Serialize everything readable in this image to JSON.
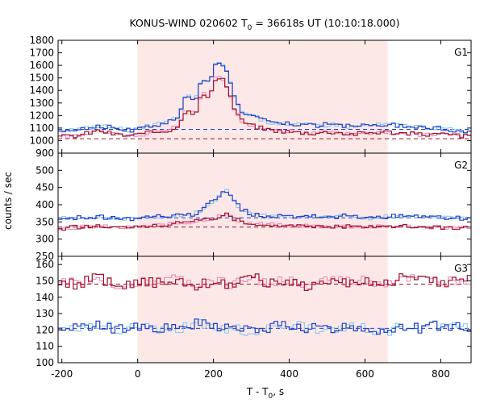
{
  "chart_data": {
    "type": "line",
    "title": "KONUS-WIND 020602 T",
    "title_sub": "0",
    "title_rest": " = 36618s UT (10:10:18.000)",
    "xlabel": "T - T",
    "xlabel_sub": "0",
    "xlabel_rest": ", s",
    "ylabel": "counts / sec",
    "xlim": [
      -210,
      880
    ],
    "x_ticks": [
      -200,
      0,
      200,
      400,
      600,
      800
    ],
    "shaded_interval": [
      0,
      660
    ],
    "shade_color": "#fde8e8",
    "colors": {
      "blue": "#1f3fc8",
      "red": "#a0102a",
      "light_blue": "#7ec8f0",
      "pink": "#f080b8"
    },
    "panels": [
      {
        "label": "G1",
        "ylim": [
          900,
          1800
        ],
        "y_ticks": [
          900,
          1000,
          1100,
          1200,
          1300,
          1400,
          1500,
          1600,
          1700,
          1800
        ],
        "bin": 10,
        "series": [
          {
            "color": "blue",
            "x": [
              -210,
              -160,
              -130,
              -100,
              -60,
              -20,
              10,
              50,
              80,
              110,
              130,
              150,
              170,
              190,
              205,
              220,
              235,
              255,
              275,
              300,
              340,
              400,
              460,
              520,
              560,
              600,
              650,
              700,
              750,
              800,
              850,
              880
            ],
            "y": [
              1080,
              1090,
              1100,
              1120,
              1100,
              1080,
              1100,
              1130,
              1140,
              1200,
              1380,
              1300,
              1500,
              1450,
              1600,
              1640,
              1560,
              1350,
              1230,
              1200,
              1150,
              1130,
              1120,
              1130,
              1110,
              1120,
              1130,
              1120,
              1110,
              1100,
              1080,
              1070
            ]
          },
          {
            "color": "red",
            "x": [
              -210,
              -160,
              -130,
              -100,
              -60,
              -20,
              10,
              50,
              80,
              110,
              130,
              150,
              170,
              190,
              205,
              220,
              235,
              255,
              275,
              300,
              340,
              400,
              460,
              520,
              560,
              600,
              650,
              700,
              750,
              800,
              850,
              880
            ],
            "y": [
              1030,
              1040,
              1060,
              1080,
              1050,
              1040,
              1050,
              1070,
              1080,
              1120,
              1270,
              1200,
              1380,
              1330,
              1490,
              1520,
              1440,
              1260,
              1160,
              1120,
              1090,
              1070,
              1060,
              1070,
              1050,
              1060,
              1070,
              1060,
              1050,
              1050,
              1040,
              1030
            ]
          }
        ],
        "background_levels": [
          {
            "color": "blue",
            "value": 1090
          },
          {
            "color": "red",
            "value": 1015
          }
        ]
      },
      {
        "label": "G2",
        "ylim": [
          250,
          550
        ],
        "y_ticks": [
          250,
          300,
          350,
          400,
          450,
          500
        ],
        "bin": 10,
        "series": [
          {
            "color": "blue",
            "x": [
              -210,
              -160,
              -100,
              -50,
              0,
              50,
              100,
              150,
              180,
              200,
              220,
              235,
              250,
              270,
              300,
              350,
              400,
              450,
              500,
              550,
              600,
              650,
              700,
              750,
              800,
              880
            ],
            "y": [
              360,
              362,
              365,
              358,
              360,
              365,
              368,
              372,
              395,
              410,
              430,
              440,
              420,
              390,
              372,
              368,
              365,
              370,
              362,
              368,
              360,
              365,
              368,
              365,
              362,
              360
            ]
          },
          {
            "color": "red",
            "x": [
              -210,
              -160,
              -100,
              -50,
              0,
              50,
              100,
              150,
              180,
              200,
              220,
              235,
              250,
              270,
              300,
              350,
              400,
              450,
              500,
              550,
              600,
              650,
              700,
              750,
              800,
              880
            ],
            "y": [
              330,
              335,
              338,
              332,
              335,
              340,
              345,
              350,
              358,
              362,
              368,
              370,
              362,
              352,
              345,
              342,
              338,
              340,
              336,
              338,
              334,
              337,
              338,
              336,
              334,
              330
            ]
          }
        ],
        "background_levels": [
          {
            "color": "blue",
            "value": 362
          },
          {
            "color": "red",
            "value": 335
          }
        ]
      },
      {
        "label": "G3",
        "ylim": [
          100,
          165
        ],
        "y_ticks": [
          100,
          110,
          120,
          130,
          140,
          150,
          160
        ],
        "bin": 10,
        "series": [
          {
            "color": "red",
            "x": [
              -210,
              -160,
              -100,
              -50,
              0,
              50,
              100,
              150,
              200,
              250,
              300,
              350,
              400,
              450,
              500,
              550,
              600,
              650,
              700,
              750,
              800,
              880
            ],
            "y": [
              150,
              148,
              152,
              146,
              150,
              149,
              151,
              147,
              150,
              148,
              152,
              149,
              150,
              146,
              151,
              149,
              150,
              148,
              152,
              150,
              149,
              151
            ]
          },
          {
            "color": "blue",
            "x": [
              -210,
              -160,
              -100,
              -50,
              0,
              50,
              100,
              150,
              200,
              250,
              300,
              350,
              400,
              450,
              500,
              550,
              600,
              650,
              700,
              750,
              800,
              880
            ],
            "y": [
              122,
              121,
              123,
              120,
              122,
              121,
              120,
              124,
              122,
              121,
              119,
              122,
              123,
              121,
              120,
              122,
              121,
              119,
              122,
              121,
              123,
              122
            ]
          }
        ],
        "background_levels": [
          {
            "color": "red",
            "value": 148
          },
          {
            "color": "blue",
            "value": 121
          }
        ]
      }
    ]
  }
}
